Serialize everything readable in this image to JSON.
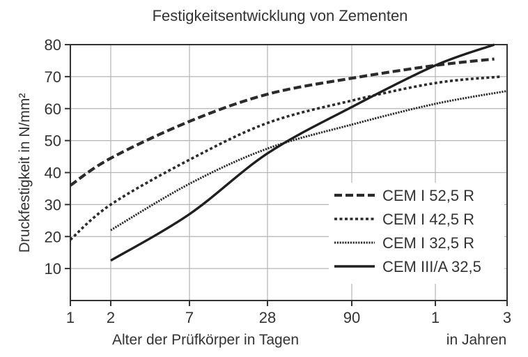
{
  "chart_data": {
    "type": "line",
    "title": "Festigkeitsentwicklung von Zementen",
    "xlabel": "Alter der Prüfkörper in Tagen",
    "xlabel2": "in Jahren",
    "ylabel": "Druckfestigkeit in N/mm²",
    "x_scale": "log",
    "x_ticks_days": [
      "1",
      "2",
      "7",
      "28",
      "90"
    ],
    "x_ticks_years": [
      "1",
      "3"
    ],
    "x_tick_values_days": [
      1,
      2,
      7,
      28,
      90,
      365,
      1095
    ],
    "y_ticks": [
      "10",
      "20",
      "30",
      "40",
      "50",
      "60",
      "70",
      "80"
    ],
    "ylim": [
      0,
      80
    ],
    "grid": true,
    "legend_position": "right",
    "series": [
      {
        "name": "CEM I 52,5 R",
        "style": "dashed-bold",
        "color": "#2b2b2b",
        "points": [
          [
            1,
            36
          ],
          [
            2,
            44.5
          ],
          [
            7,
            56
          ],
          [
            28,
            64.5
          ],
          [
            90,
            69.5
          ],
          [
            365,
            73.5
          ],
          [
            900,
            75.5
          ]
        ]
      },
      {
        "name": "CEM I 42,5 R",
        "style": "dotted-medium",
        "color": "#2b2b2b",
        "points": [
          [
            1,
            19
          ],
          [
            2,
            30
          ],
          [
            7,
            44
          ],
          [
            28,
            55.5
          ],
          [
            90,
            62.5
          ],
          [
            365,
            68
          ],
          [
            1000,
            70
          ]
        ]
      },
      {
        "name": "CEM I 32,5 R",
        "style": "dotted-fine",
        "color": "#2b2b2b",
        "points": [
          [
            2,
            22
          ],
          [
            7,
            36.5
          ],
          [
            28,
            47.5
          ],
          [
            90,
            55
          ],
          [
            365,
            61.5
          ],
          [
            1095,
            65.5
          ]
        ]
      },
      {
        "name": "CEM III/A 32,5",
        "style": "solid",
        "color": "#1f1f1f",
        "points": [
          [
            2,
            12.5
          ],
          [
            7,
            27
          ],
          [
            28,
            46
          ],
          [
            90,
            60.5
          ],
          [
            365,
            73.5
          ],
          [
            900,
            80
          ]
        ]
      }
    ]
  }
}
